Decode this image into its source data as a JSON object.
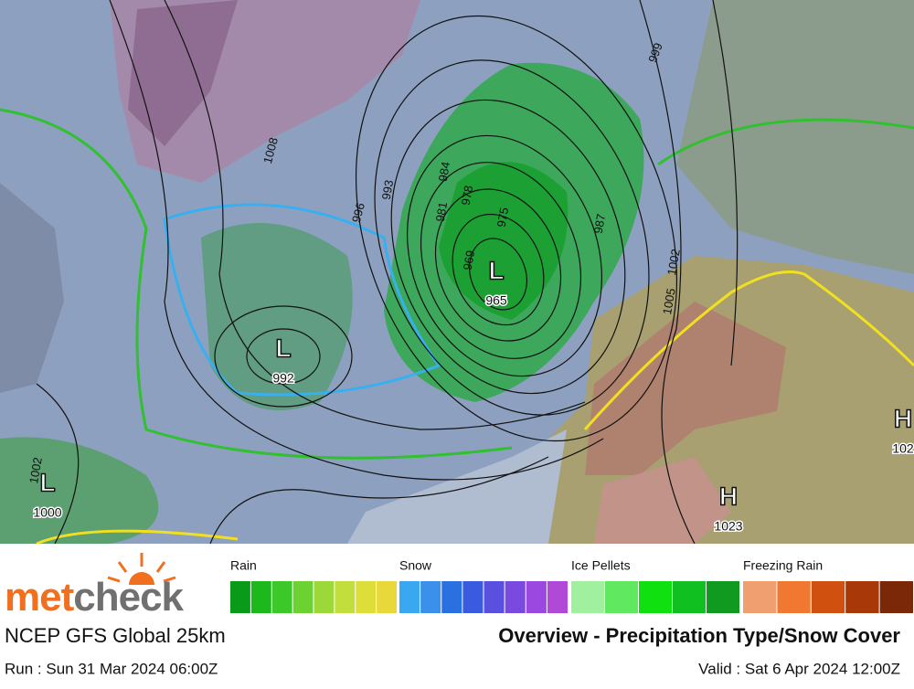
{
  "map": {
    "pressure_systems": [
      {
        "symbol": "L",
        "pressure": 965
      },
      {
        "symbol": "L",
        "pressure": 992
      },
      {
        "symbol": "L",
        "pressure": 1000
      },
      {
        "symbol": "H",
        "pressure": 1023
      },
      {
        "symbol": "H",
        "pressure": "102"
      }
    ],
    "isobar_labels": [
      "1008",
      "996",
      "993",
      "984",
      "981",
      "978",
      "975",
      "969",
      "987",
      "999",
      "1002",
      "1005",
      "1002"
    ]
  },
  "legend": [
    {
      "label": "Rain",
      "colors": [
        "#0a9a1a",
        "#1cb81c",
        "#3cc828",
        "#6cd232",
        "#9cd83a",
        "#c2de3c",
        "#dede3a",
        "#e8d83a"
      ]
    },
    {
      "label": "Snow",
      "colors": [
        "#3aa8f0",
        "#3a90ea",
        "#2a70e0",
        "#3a5ae0",
        "#5a50e0",
        "#7a4ae0",
        "#9a48e0",
        "#b048d8"
      ]
    },
    {
      "label": "Ice Pellets",
      "colors": [
        "#a0f0a0",
        "#60e860",
        "#10e010",
        "#10c020",
        "#109a20"
      ]
    },
    {
      "label": "Freezing Rain",
      "colors": [
        "#f0a070",
        "#f07830",
        "#d05010",
        "#a83808",
        "#7a2808"
      ]
    }
  ],
  "footer": {
    "brand": [
      "met",
      "check"
    ],
    "model": "NCEP GFS Global 25km",
    "title": "Overview - Precipitation Type/Snow Cover",
    "run": "Run : Sun 31 Mar 2024 06:00Z",
    "valid": "Valid : Sat 6 Apr 2024 12:00Z"
  }
}
